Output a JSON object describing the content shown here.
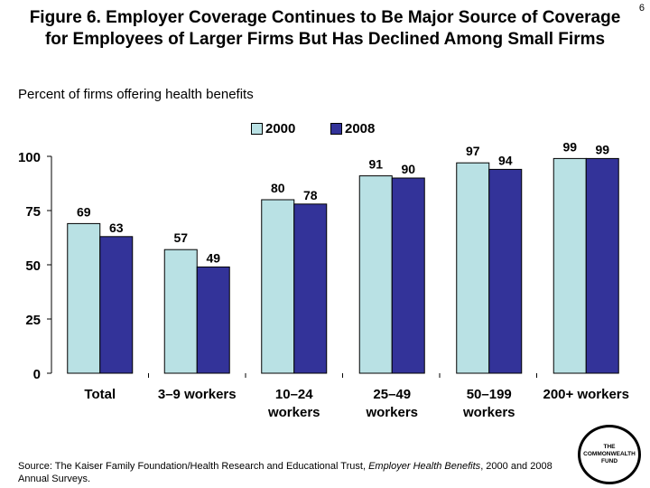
{
  "page_number": "6",
  "title_line1": "Figure 6. Employer Coverage Continues to Be Major Source of Coverage",
  "title_line2": "for Employees of Larger Firms But Has Declined Among Small Firms",
  "source_prefix": "Source: The Kaiser Family Foundation/Health Research and Educational Trust, ",
  "source_italic": "Employer Health Benefits",
  "source_suffix": ", 2000 and 2008 Annual Surveys.",
  "logo_text": "THE COMMONWEALTH FUND",
  "chart_data": {
    "type": "bar",
    "title": "",
    "ylabel": "Percent of firms offering health benefits",
    "xlabel": "",
    "ylim": [
      0,
      100
    ],
    "yticks": [
      0,
      25,
      50,
      75,
      100
    ],
    "grid": false,
    "legend_position": "top",
    "categories": [
      [
        "Total"
      ],
      [
        "3–9 workers"
      ],
      [
        "10–24",
        "workers"
      ],
      [
        "25–49",
        "workers"
      ],
      [
        "50–199",
        "workers"
      ],
      [
        "200+ workers"
      ]
    ],
    "series": [
      {
        "name": "2000",
        "color": "#b9e1e4",
        "values": [
          69,
          57,
          80,
          91,
          97,
          99
        ]
      },
      {
        "name": "2008",
        "color": "#333399",
        "values": [
          63,
          49,
          78,
          90,
          94,
          99
        ]
      }
    ]
  }
}
